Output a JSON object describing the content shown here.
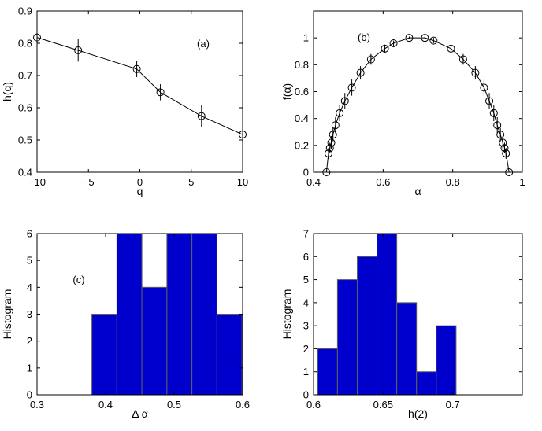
{
  "chart_data": [
    {
      "id": "a",
      "type": "line",
      "annotation": "(a)",
      "xlabel": "q",
      "ylabel": "h(q)",
      "xlim": [
        -10,
        10
      ],
      "ylim": [
        0.4,
        0.9
      ],
      "xticks": [
        -10,
        -5,
        0,
        5,
        10
      ],
      "yticks": [
        0.4,
        0.5,
        0.6,
        0.7,
        0.8,
        0.9
      ],
      "xtick_labels": [
        "−10",
        "−5",
        "0",
        "5",
        "10"
      ],
      "ytick_labels": [
        "0.4",
        "0.5",
        "0.6",
        "0.7",
        "0.8",
        "0.9"
      ],
      "grid": false,
      "marker": "open-circle",
      "points": [
        {
          "x": -10,
          "y": 0.818,
          "err": 0.038
        },
        {
          "x": -6,
          "y": 0.778,
          "err": 0.035
        },
        {
          "x": -0.3,
          "y": 0.72,
          "err": 0.025
        },
        {
          "x": 2,
          "y": 0.648,
          "err": 0.025
        },
        {
          "x": 6,
          "y": 0.574,
          "err": 0.035
        },
        {
          "x": 10,
          "y": 0.517,
          "err": 0.045
        }
      ]
    },
    {
      "id": "b",
      "type": "line",
      "annotation": "(b)",
      "xlabel": "α",
      "ylabel": "f(α)",
      "xlim": [
        0.4,
        1
      ],
      "ylim": [
        0,
        1.2
      ],
      "xticks": [
        0.4,
        0.6,
        0.8,
        1
      ],
      "yticks": [
        0,
        0.2,
        0.4,
        0.6,
        0.8,
        1
      ],
      "xtick_labels": [
        "0.4",
        "0.6",
        "0.8",
        "1"
      ],
      "ytick_labels": [
        "0",
        "0.2",
        "0.4",
        "0.6",
        "0.8",
        "1"
      ],
      "grid": false,
      "marker": "open-circle",
      "points": [
        {
          "x": 0.437,
          "y": 0.0,
          "err": 0
        },
        {
          "x": 0.443,
          "y": 0.14,
          "err": 0.04
        },
        {
          "x": 0.447,
          "y": 0.18,
          "err": 0.04
        },
        {
          "x": 0.451,
          "y": 0.22,
          "err": 0.05
        },
        {
          "x": 0.456,
          "y": 0.28,
          "err": 0.05
        },
        {
          "x": 0.463,
          "y": 0.35,
          "err": 0.06
        },
        {
          "x": 0.475,
          "y": 0.44,
          "err": 0.06
        },
        {
          "x": 0.49,
          "y": 0.53,
          "err": 0.06
        },
        {
          "x": 0.51,
          "y": 0.63,
          "err": 0.06
        },
        {
          "x": 0.535,
          "y": 0.74,
          "err": 0.05
        },
        {
          "x": 0.565,
          "y": 0.84,
          "err": 0.04
        },
        {
          "x": 0.605,
          "y": 0.92,
          "err": 0.03
        },
        {
          "x": 0.63,
          "y": 0.96,
          "err": 0.02
        },
        {
          "x": 0.675,
          "y": 1.0,
          "err": 0.01
        },
        {
          "x": 0.72,
          "y": 1.0,
          "err": 0.01
        },
        {
          "x": 0.745,
          "y": 0.98,
          "err": 0.02
        },
        {
          "x": 0.795,
          "y": 0.92,
          "err": 0.03
        },
        {
          "x": 0.83,
          "y": 0.84,
          "err": 0.04
        },
        {
          "x": 0.865,
          "y": 0.74,
          "err": 0.05
        },
        {
          "x": 0.89,
          "y": 0.63,
          "err": 0.06
        },
        {
          "x": 0.905,
          "y": 0.53,
          "err": 0.06
        },
        {
          "x": 0.918,
          "y": 0.44,
          "err": 0.06
        },
        {
          "x": 0.928,
          "y": 0.35,
          "err": 0.06
        },
        {
          "x": 0.937,
          "y": 0.28,
          "err": 0.05
        },
        {
          "x": 0.944,
          "y": 0.22,
          "err": 0.05
        },
        {
          "x": 0.949,
          "y": 0.18,
          "err": 0.04
        },
        {
          "x": 0.953,
          "y": 0.14,
          "err": 0.04
        },
        {
          "x": 0.962,
          "y": 0.0,
          "err": 0
        }
      ]
    },
    {
      "id": "c",
      "type": "bar",
      "annotation": "(c)",
      "xlabel": "Δ α",
      "ylabel": "Histogram",
      "xlim": [
        0.3,
        0.6
      ],
      "ylim": [
        0,
        6
      ],
      "xticks": [
        0.3,
        0.4,
        0.5,
        0.6
      ],
      "yticks": [
        0,
        1,
        2,
        3,
        4,
        5,
        6
      ],
      "xtick_labels": [
        "0.3",
        "0.4",
        "0.5",
        "0.6"
      ],
      "ytick_labels": [
        "0",
        "1",
        "2",
        "3",
        "4",
        "5",
        "6"
      ],
      "grid": false,
      "bar_color": "#0000cc",
      "bins": [
        {
          "x0": 0.38,
          "x1": 0.4165,
          "value": 3
        },
        {
          "x0": 0.4165,
          "x1": 0.453,
          "value": 6
        },
        {
          "x0": 0.453,
          "x1": 0.4895,
          "value": 4
        },
        {
          "x0": 0.4895,
          "x1": 0.526,
          "value": 6
        },
        {
          "x0": 0.526,
          "x1": 0.5625,
          "value": 6
        },
        {
          "x0": 0.5625,
          "x1": 0.599,
          "value": 3
        }
      ]
    },
    {
      "id": "d",
      "type": "bar",
      "xlabel": "h(2)",
      "ylabel": "Histogram",
      "xlim": [
        0.6,
        0.75
      ],
      "ylim": [
        0,
        7
      ],
      "xticks": [
        0.6,
        0.65,
        0.7
      ],
      "yticks": [
        0,
        1,
        2,
        3,
        4,
        5,
        6,
        7
      ],
      "xtick_labels": [
        "0.6",
        "0.65",
        "0.7"
      ],
      "ytick_labels": [
        "0",
        "1",
        "2",
        "3",
        "4",
        "5",
        "6",
        "7"
      ],
      "grid": false,
      "bar_color": "#0000cc",
      "bins": [
        {
          "x0": 0.603,
          "x1": 0.6172,
          "value": 2
        },
        {
          "x0": 0.6172,
          "x1": 0.6314,
          "value": 5
        },
        {
          "x0": 0.6314,
          "x1": 0.6456,
          "value": 6
        },
        {
          "x0": 0.6456,
          "x1": 0.6598,
          "value": 7
        },
        {
          "x0": 0.6598,
          "x1": 0.674,
          "value": 4
        },
        {
          "x0": 0.674,
          "x1": 0.6882,
          "value": 1
        },
        {
          "x0": 0.6882,
          "x1": 0.7024,
          "value": 3
        }
      ]
    }
  ]
}
